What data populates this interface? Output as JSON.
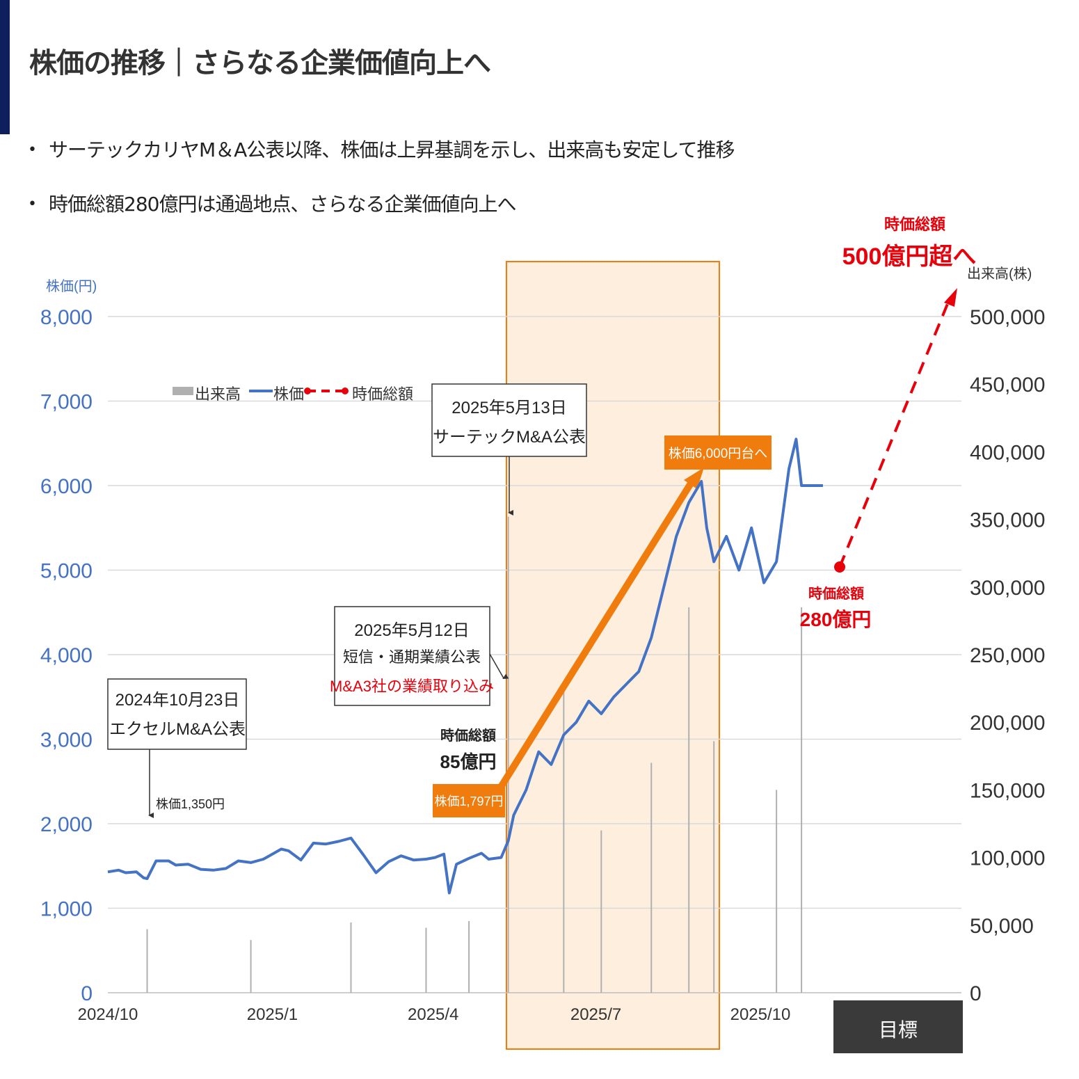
{
  "header": {
    "title": "株価の推移｜さらなる企業価値向上へ"
  },
  "bullets": [
    "サーテックカリヤM＆A公表以降、株価は上昇基調を示し、出来高も安定して推移",
    "時価総額280億円は通過地点、さらなる企業価値向上へ"
  ],
  "colors": {
    "price_line": "#4472c4",
    "volume_bar": "#b0b0b0",
    "market_cap": "#e8000b",
    "highlight": "#f07c0d",
    "highlight_fill": "#fdeede",
    "target_box": "#3a3a3a",
    "accent": "#0d1f5c"
  },
  "chart_data": {
    "type": "line",
    "x_labels": [
      "2024/10",
      "2025/1",
      "2025/4",
      "2025/7",
      "2025/10"
    ],
    "target_label": "目標",
    "y_left": {
      "label": "株価(円)",
      "ticks": [
        "0",
        "1,000",
        "2,000",
        "3,000",
        "4,000",
        "5,000",
        "6,000",
        "7,000",
        "8,000"
      ],
      "range": [
        0,
        8000
      ]
    },
    "y_right": {
      "label": "出来高(株)",
      "ticks": [
        "0",
        "50,000",
        "100,000",
        "150,000",
        "200,000",
        "250,000",
        "300,000",
        "350,000",
        "400,000",
        "450,000",
        "500,000"
      ],
      "range": [
        0,
        500000
      ]
    },
    "legend": [
      {
        "name": "出来高",
        "kind": "bar"
      },
      {
        "name": "株価",
        "kind": "line"
      },
      {
        "name": "時価総額",
        "kind": "dashed-dot"
      }
    ],
    "grid": true,
    "series": [
      {
        "name": "株価",
        "x": [
          "2024-10-01",
          "2024-10-07",
          "2024-10-11",
          "2024-10-17",
          "2024-10-21",
          "2024-10-23",
          "2024-10-28",
          "2024-11-04",
          "2024-11-08",
          "2024-11-15",
          "2024-11-22",
          "2024-11-29",
          "2024-12-06",
          "2024-12-13",
          "2024-12-20",
          "2024-12-27",
          "2025-01-06",
          "2025-01-10",
          "2025-01-17",
          "2025-01-24",
          "2025-01-31",
          "2025-02-07",
          "2025-02-14",
          "2025-02-21",
          "2025-02-28",
          "2025-03-07",
          "2025-03-14",
          "2025-03-21",
          "2025-03-28",
          "2025-04-02",
          "2025-04-07",
          "2025-04-10",
          "2025-04-14",
          "2025-04-21",
          "2025-04-28",
          "2025-05-02",
          "2025-05-09",
          "2025-05-13",
          "2025-05-16",
          "2025-05-23",
          "2025-05-30",
          "2025-06-06",
          "2025-06-13",
          "2025-06-20",
          "2025-06-27",
          "2025-07-04",
          "2025-07-11",
          "2025-07-18",
          "2025-07-25",
          "2025-08-01",
          "2025-08-08",
          "2025-08-15",
          "2025-08-22",
          "2025-08-29",
          "2025-09-01",
          "2025-09-05",
          "2025-09-12",
          "2025-09-19",
          "2025-09-26",
          "2025-10-03",
          "2025-10-10",
          "2025-10-17",
          "2025-10-21",
          "2025-10-24",
          "2025-10-27",
          "2025-10-31",
          "2025-11-05"
        ],
        "values": [
          1430,
          1450,
          1420,
          1430,
          1360,
          1350,
          1560,
          1560,
          1510,
          1520,
          1460,
          1450,
          1470,
          1560,
          1540,
          1580,
          1700,
          1680,
          1570,
          1770,
          1760,
          1790,
          1830,
          1630,
          1420,
          1550,
          1620,
          1570,
          1580,
          1600,
          1640,
          1180,
          1520,
          1590,
          1650,
          1580,
          1600,
          1797,
          2100,
          2400,
          2850,
          2700,
          3050,
          3200,
          3450,
          3300,
          3500,
          3650,
          3800,
          4200,
          4800,
          5400,
          5800,
          6050,
          5500,
          5100,
          5400,
          5000,
          5500,
          4850,
          5100,
          6200,
          6550,
          6000,
          6000,
          6000,
          6000
        ]
      },
      {
        "name": "出来高",
        "x": [
          "2024-10-23",
          "2024-12-20",
          "2025-02-14",
          "2025-03-28",
          "2025-04-21",
          "2025-05-13",
          "2025-06-13",
          "2025-07-04",
          "2025-08-01",
          "2025-08-22",
          "2025-09-05",
          "2025-10-10",
          "2025-10-24"
        ],
        "values": [
          47000,
          39000,
          52000,
          48000,
          53000,
          352000,
          230000,
          120000,
          170000,
          285000,
          186000,
          150000,
          285000
        ]
      }
    ],
    "market_cap": [
      {
        "label": "時価総額",
        "value": "85億円"
      },
      {
        "label": "時価総額",
        "value": "280億円"
      },
      {
        "label": "時価総額",
        "value": "500億円超へ"
      }
    ]
  },
  "annotations": {
    "event1": {
      "date": "2024年10月23日",
      "text": "エクセルM&A公表",
      "price": "株価1,350円"
    },
    "event2": {
      "date": "2025年5月12日",
      "line2": "短信・通期業績公表",
      "line3": "M&A3社の業績取り込み"
    },
    "event3": {
      "date": "2025年5月13日",
      "text": "サーテックM&A公表"
    },
    "price_start": "株価1,797円",
    "price_target": "株価6,000円台へ",
    "mcap_85": {
      "label": "時価総額",
      "value": "85億円"
    },
    "mcap_280": {
      "label": "時価総額",
      "value": "280億円"
    },
    "mcap_500": {
      "label": "時価総額",
      "value": "500億円超へ"
    }
  }
}
